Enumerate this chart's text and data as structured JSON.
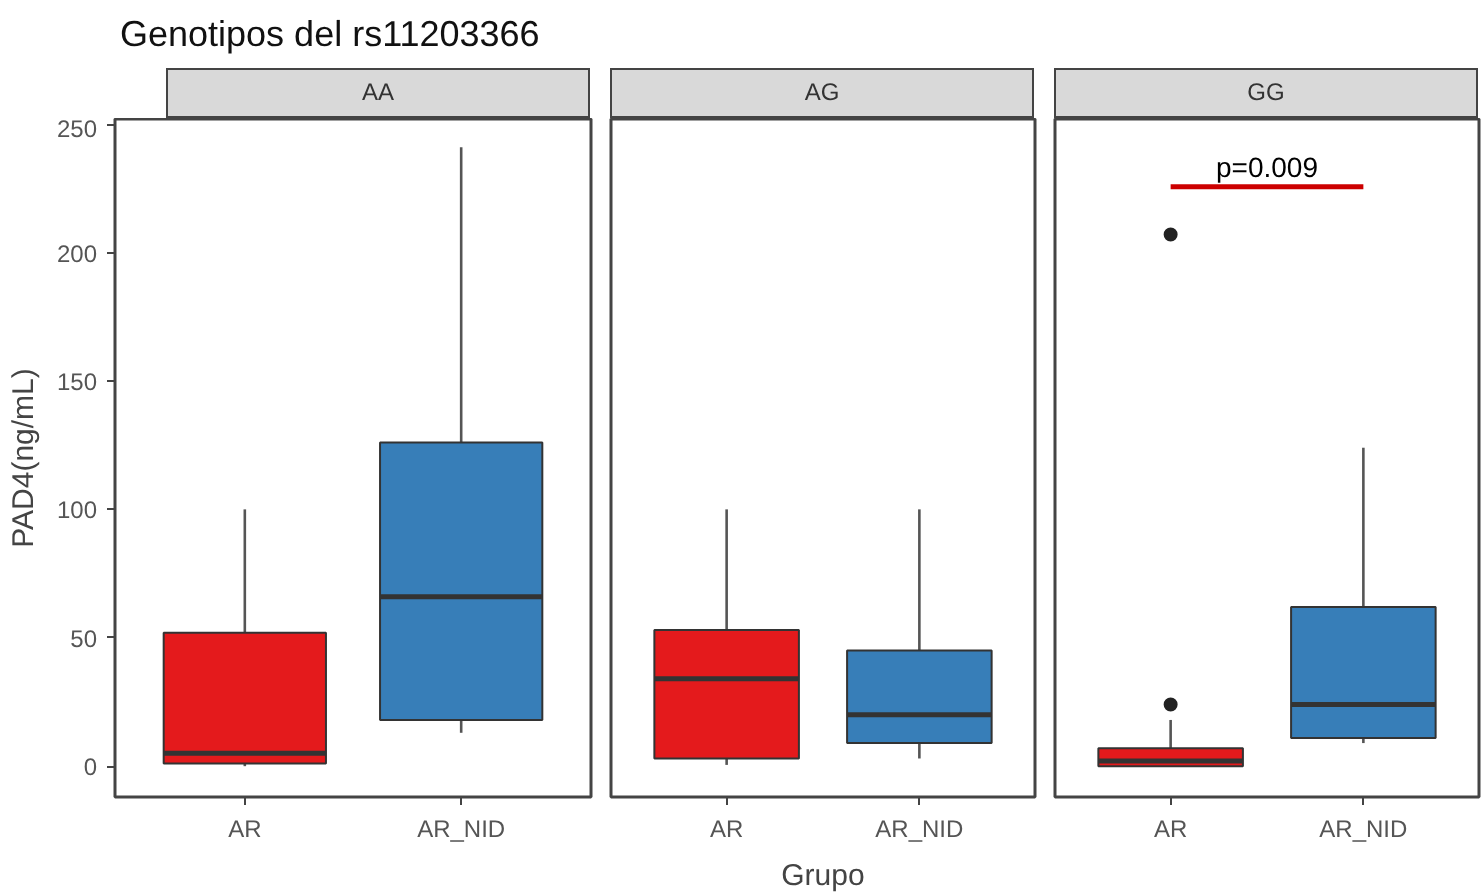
{
  "chart_data": [
    {
      "type": "box",
      "title": "AA",
      "ylabel": "PAD4(ng/mL)",
      "annotations": [
        "Genotipos del rs11203366"
      ],
      "categories": [
        "AR",
        "AR_NID"
      ],
      "colors": [
        "#e41a1c",
        "#377eb8"
      ],
      "ylim": [
        -12,
        252
      ],
      "yticks": [
        0,
        50,
        100,
        150,
        200,
        250
      ],
      "grid": false,
      "boxes": [
        {
          "low": 0,
          "q1": 1,
          "median": 5,
          "q3": 52,
          "high": 100
        },
        {
          "low": 13,
          "q1": 18,
          "median": 66,
          "q3": 126,
          "high": 241
        }
      ]
    },
    {
      "type": "box",
      "title": "AG",
      "xlabel": "Grupo",
      "categories": [
        "AR",
        "AR_NID"
      ],
      "colors": [
        "#e41a1c",
        "#377eb8"
      ],
      "ylim": [
        -12,
        252
      ],
      "yticks": [
        0,
        50,
        100,
        150,
        200,
        250
      ],
      "tick_labels": "x",
      "grid": false,
      "boxes": [
        {
          "low": 0.5,
          "q1": 3,
          "median": 34,
          "q3": 53,
          "high": 100
        },
        {
          "low": 3,
          "q1": 9,
          "median": 20,
          "q3": 45,
          "high": 100
        }
      ]
    },
    {
      "type": "box",
      "title": "GG",
      "annotations": [
        "p=0.009"
      ],
      "categories": [
        "AR",
        "AR_NID"
      ],
      "colors": [
        "#e41a1c",
        "#377eb8"
      ],
      "ylim": [
        -12,
        252
      ],
      "yticks": [
        0,
        50,
        100,
        150,
        200,
        250
      ],
      "tick_labels": "x",
      "grid": false,
      "boxes": [
        {
          "low": 0,
          "q1": 0,
          "median": 2,
          "q3": 7,
          "high": 18,
          "outliers": [
            24,
            207
          ]
        },
        {
          "low": 9,
          "q1": 11,
          "median": 24,
          "q3": 62,
          "high": 124
        }
      ]
    }
  ]
}
